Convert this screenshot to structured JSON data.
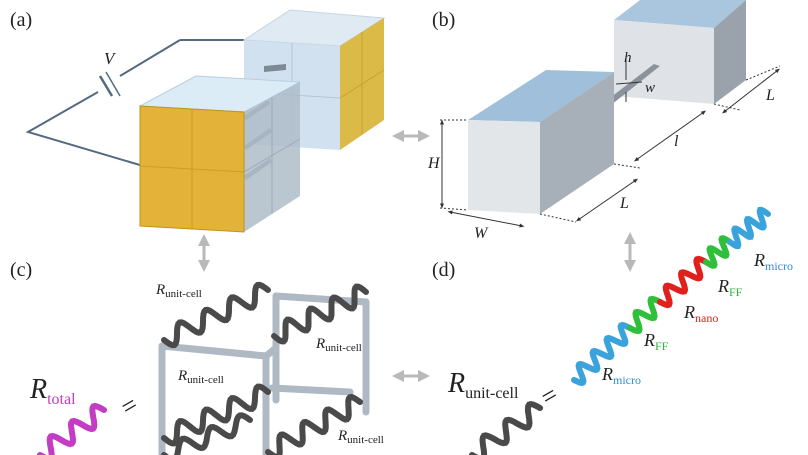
{
  "panels": {
    "a": {
      "label": "(a)",
      "voltage": "V"
    },
    "b": {
      "label": "(b)",
      "dims": {
        "h": "h",
        "w": "w",
        "H": "H",
        "W": "W",
        "L_top": "L",
        "L_bottom": "L",
        "l": "l"
      }
    },
    "c": {
      "label": "(c)",
      "r_symbol": "R",
      "unit_cell_sub": "unit-cell",
      "total_sub": "total",
      "equals": "="
    },
    "d": {
      "label": "(d)",
      "r_symbol": "R",
      "unit_cell_sub": "unit-cell",
      "equals": "=",
      "micro_sub": "micro",
      "ff_sub": "FF",
      "nano_sub": "nano"
    }
  },
  "colors": {
    "cube_face": "#9ec4e0",
    "cube_face_light": "#cfe3f2",
    "cube_grey": "#c8cdd2",
    "electrode": "#d8a91f",
    "wire": "#546a80",
    "arrow": "#b9b9b9",
    "helix_grey": "#4a4a4a",
    "helix_total": "#c23cc4",
    "micro": "#3aa3dc",
    "ff": "#2fbf3a",
    "nano": "#e0201d",
    "total_text": "#c23cc4",
    "micro_text": "#2f8fd0",
    "ff_text": "#2fb53a",
    "nano_text": "#d8231f"
  }
}
